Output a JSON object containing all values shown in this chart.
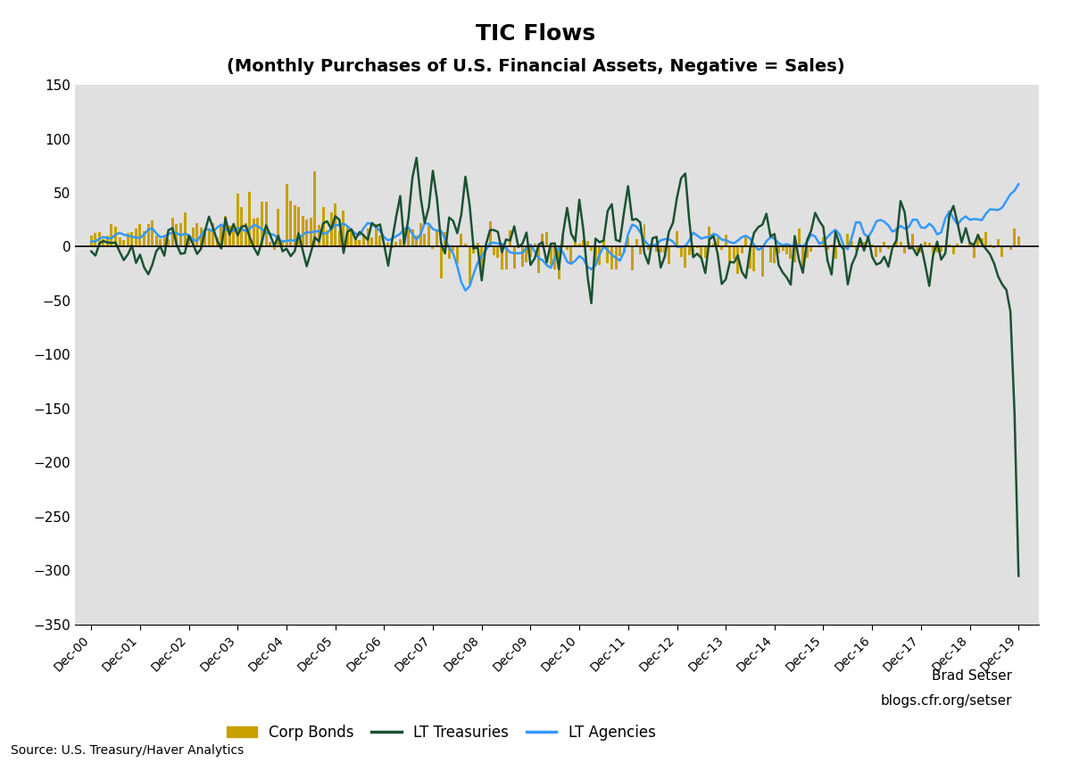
{
  "title": "TIC Flows",
  "subtitle": "(Monthly Purchases of U.S. Financial Assets, Negative = Sales)",
  "ylim": [
    -350,
    150
  ],
  "yticks": [
    -350,
    -300,
    -250,
    -200,
    -150,
    -100,
    -50,
    0,
    50,
    100,
    150
  ],
  "plot_bg_color": "#e0e0e0",
  "legend_labels": [
    "Corp Bonds",
    "LT Treasuries",
    "LT Agencies"
  ],
  "corp_bonds_color": "#c8a000",
  "lt_treasuries_color": "#1a5232",
  "lt_agencies_color": "#3399ff",
  "source_text": "Source: U.S. Treasury/Haver Analytics",
  "attribution_top": "Brad Setser",
  "attribution_bottom": "blogs.cfr.org/setser",
  "n_months": 229
}
